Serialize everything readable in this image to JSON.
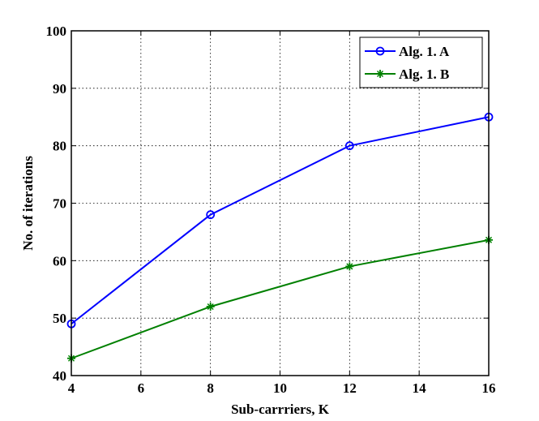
{
  "chart_data": {
    "type": "line",
    "xlabel": "Sub-carrriers, K",
    "ylabel": "No. of iterations",
    "xlim": [
      4,
      16
    ],
    "ylim": [
      40,
      100
    ],
    "xticks": [
      4,
      6,
      8,
      10,
      12,
      14,
      16
    ],
    "yticks": [
      40,
      50,
      60,
      70,
      80,
      90,
      100
    ],
    "grid": true,
    "legend_position": "top-right",
    "series": [
      {
        "name": "Alg. 1. A",
        "color": "#0000ff",
        "marker": "circle",
        "x": [
          4,
          8,
          12,
          16
        ],
        "y": [
          49,
          68,
          80,
          85
        ]
      },
      {
        "name": "Alg. 1. B",
        "color": "#008000",
        "marker": "star",
        "x": [
          4,
          8,
          12,
          16
        ],
        "y": [
          43,
          52,
          59,
          63.6
        ]
      }
    ]
  }
}
